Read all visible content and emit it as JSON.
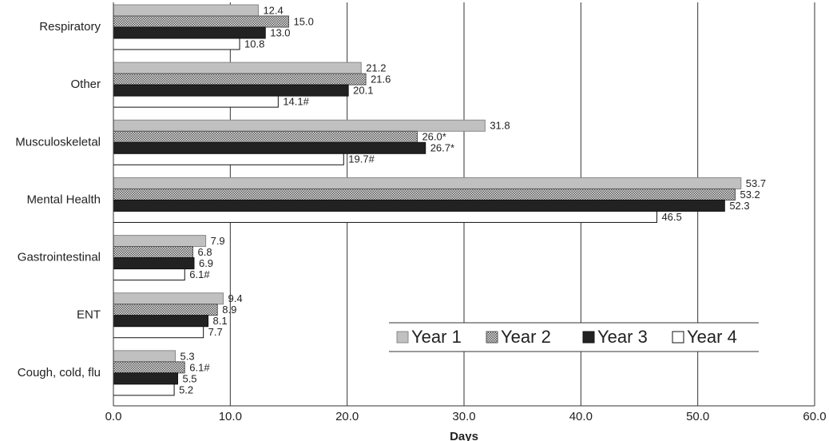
{
  "chart_data": {
    "type": "barh",
    "x_label": "Days",
    "categories": [
      "Respiratory",
      "Other",
      "Musculoskeletal",
      "Mental Health",
      "Gastrointestinal",
      "ENT",
      "Cough, cold, flu"
    ],
    "series": [
      {
        "name": "Year 1",
        "color": "#c0c0c0",
        "values": [
          12.4,
          21.2,
          31.8,
          53.7,
          7.9,
          9.4,
          5.3
        ],
        "value_labels": [
          "12.4",
          "21.2",
          "31.8",
          "53.7",
          "7.9",
          "9.4",
          "5.3"
        ]
      },
      {
        "name": "Year 2",
        "color": "#8a8a8a",
        "values": [
          15.0,
          21.6,
          26.0,
          53.2,
          6.8,
          8.9,
          6.1
        ],
        "value_labels": [
          "15.0",
          "21.6",
          "26.0*",
          "53.2",
          "6.8",
          "8.9",
          "6.1#"
        ]
      },
      {
        "name": "Year 3",
        "color": "#222222",
        "values": [
          13.0,
          20.1,
          26.7,
          52.3,
          6.9,
          8.1,
          5.5
        ],
        "value_labels": [
          "13.0",
          "20.1",
          "26.7*",
          "52.3",
          "6.9",
          "8.1",
          "5.5"
        ]
      },
      {
        "name": "Year 4",
        "color": "#ffffff",
        "values": [
          10.8,
          14.1,
          19.7,
          46.5,
          6.1,
          7.7,
          5.2
        ],
        "value_labels": [
          "10.8",
          "14.1#",
          "19.7#",
          "46.5",
          "6.1#",
          "7.7",
          "5.2"
        ]
      }
    ],
    "xlim": [
      0,
      60
    ],
    "xticks": [
      {
        "value": 0,
        "label": "0.0"
      },
      {
        "value": 10,
        "label": "10.0"
      },
      {
        "value": 20,
        "label": "20.0"
      },
      {
        "value": 30,
        "label": "30.0"
      },
      {
        "value": 40,
        "label": "40.0"
      },
      {
        "value": 50,
        "label": "50.0"
      },
      {
        "value": 60,
        "label": "60.0"
      }
    ],
    "grid": true,
    "legend": "lower right"
  }
}
